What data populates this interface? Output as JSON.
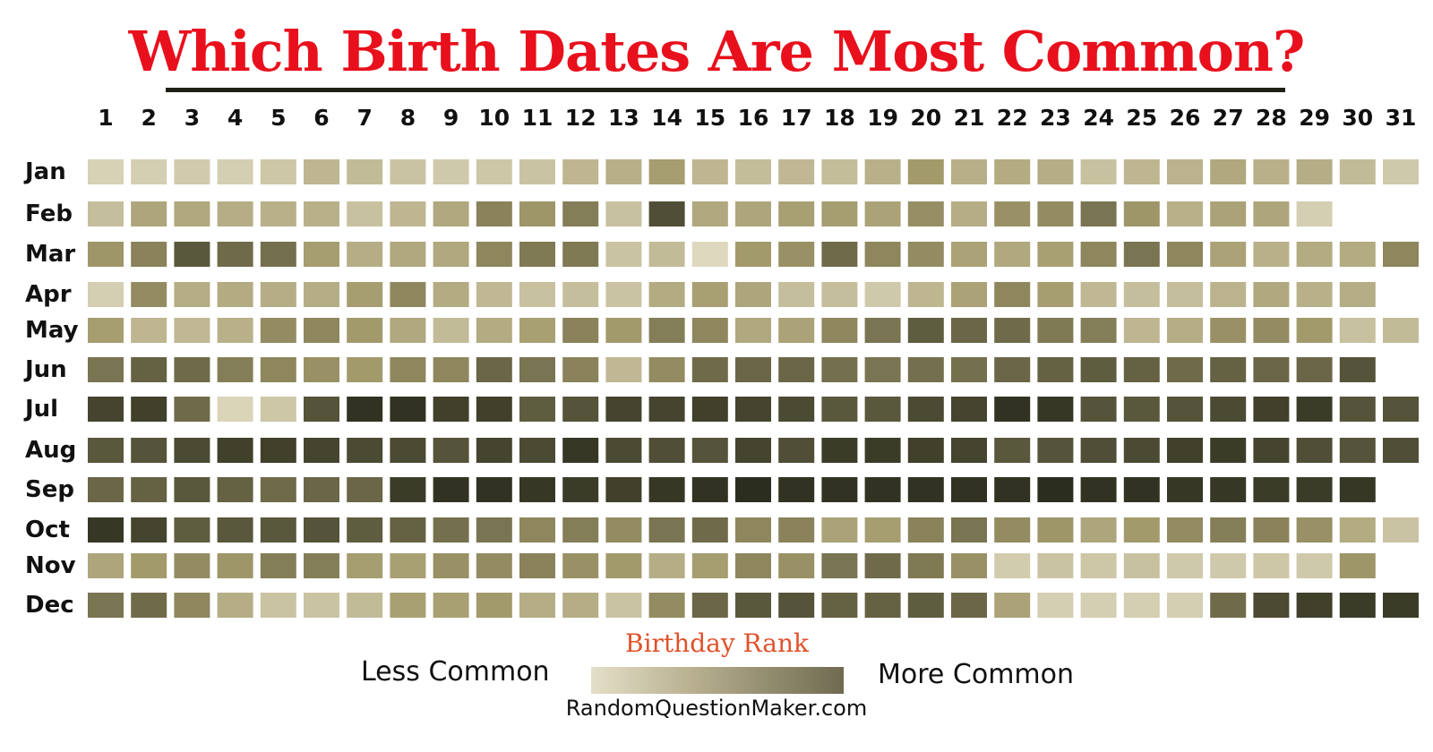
{
  "title": "Which Birth Dates Are Most Common?",
  "chart_data": {
    "type": "heatmap",
    "title": "Which Birth Dates Are Most Common?",
    "x_labels": [
      "1",
      "2",
      "3",
      "4",
      "5",
      "6",
      "7",
      "8",
      "9",
      "10",
      "11",
      "12",
      "13",
      "14",
      "15",
      "16",
      "17",
      "18",
      "19",
      "20",
      "21",
      "22",
      "23",
      "24",
      "25",
      "26",
      "27",
      "28",
      "29",
      "30",
      "31"
    ],
    "y_labels": [
      "Jan",
      "Feb",
      "Mar",
      "Apr",
      "May",
      "Jun",
      "Jul",
      "Aug",
      "Sep",
      "Oct",
      "Nov",
      "Dec"
    ],
    "value_meaning": "relative commonness, 0 = less common, 1 = more common",
    "values": [
      [
        0.1,
        0.12,
        0.15,
        0.12,
        0.18,
        0.3,
        0.26,
        0.2,
        0.16,
        0.18,
        0.2,
        0.3,
        0.35,
        0.48,
        0.3,
        0.25,
        0.28,
        0.25,
        0.34,
        0.5,
        0.35,
        0.38,
        0.36,
        0.22,
        0.3,
        0.32,
        0.4,
        0.34,
        0.36,
        0.26,
        0.16
      ],
      [
        0.24,
        0.42,
        0.4,
        0.36,
        0.34,
        0.34,
        0.22,
        0.3,
        0.4,
        0.6,
        0.52,
        0.62,
        0.22,
        0.82,
        0.4,
        0.42,
        0.46,
        0.48,
        0.44,
        0.55,
        0.36,
        0.54,
        0.56,
        0.66,
        0.52,
        0.34,
        0.44,
        0.42,
        0.12
      ],
      [
        0.52,
        0.6,
        0.78,
        0.7,
        0.68,
        0.48,
        0.36,
        0.4,
        0.4,
        0.58,
        0.64,
        0.64,
        0.2,
        0.26,
        0.05,
        0.5,
        0.54,
        0.7,
        0.58,
        0.56,
        0.44,
        0.4,
        0.46,
        0.58,
        0.66,
        0.58,
        0.44,
        0.34,
        0.38,
        0.38,
        0.58
      ],
      [
        0.12,
        0.56,
        0.36,
        0.38,
        0.36,
        0.36,
        0.48,
        0.58,
        0.38,
        0.28,
        0.22,
        0.24,
        0.2,
        0.38,
        0.46,
        0.42,
        0.24,
        0.24,
        0.16,
        0.3,
        0.44,
        0.58,
        0.48,
        0.28,
        0.24,
        0.24,
        0.32,
        0.4,
        0.34,
        0.36
      ],
      [
        0.48,
        0.3,
        0.28,
        0.34,
        0.56,
        0.58,
        0.5,
        0.4,
        0.26,
        0.38,
        0.46,
        0.6,
        0.5,
        0.62,
        0.58,
        0.4,
        0.44,
        0.58,
        0.66,
        0.76,
        0.72,
        0.7,
        0.64,
        0.62,
        0.3,
        0.36,
        0.54,
        0.56,
        0.5,
        0.22,
        0.26
      ],
      [
        0.66,
        0.74,
        0.7,
        0.62,
        0.58,
        0.54,
        0.5,
        0.58,
        0.58,
        0.72,
        0.66,
        0.6,
        0.28,
        0.56,
        0.7,
        0.72,
        0.72,
        0.68,
        0.66,
        0.68,
        0.68,
        0.72,
        0.74,
        0.76,
        0.74,
        0.7,
        0.74,
        0.72,
        0.72,
        0.8
      ],
      [
        0.86,
        0.88,
        0.7,
        0.08,
        0.18,
        0.8,
        0.94,
        0.94,
        0.88,
        0.88,
        0.76,
        0.8,
        0.86,
        0.86,
        0.88,
        0.86,
        0.84,
        0.78,
        0.78,
        0.84,
        0.86,
        0.94,
        0.92,
        0.8,
        0.78,
        0.8,
        0.84,
        0.88,
        0.9,
        0.8,
        0.8
      ],
      [
        0.78,
        0.8,
        0.84,
        0.88,
        0.88,
        0.86,
        0.84,
        0.84,
        0.8,
        0.86,
        0.84,
        0.92,
        0.84,
        0.82,
        0.8,
        0.86,
        0.82,
        0.9,
        0.9,
        0.88,
        0.86,
        0.78,
        0.8,
        0.82,
        0.84,
        0.88,
        0.9,
        0.86,
        0.82,
        0.8,
        0.82
      ],
      [
        0.72,
        0.74,
        0.78,
        0.74,
        0.7,
        0.72,
        0.72,
        0.9,
        0.94,
        0.94,
        0.92,
        0.9,
        0.88,
        0.92,
        0.94,
        0.96,
        0.94,
        0.94,
        0.94,
        0.94,
        0.94,
        0.94,
        0.96,
        0.94,
        0.94,
        0.92,
        0.92,
        0.9,
        0.9,
        0.92
      ],
      [
        0.92,
        0.86,
        0.76,
        0.78,
        0.78,
        0.8,
        0.76,
        0.74,
        0.68,
        0.66,
        0.58,
        0.62,
        0.56,
        0.66,
        0.7,
        0.58,
        0.6,
        0.44,
        0.48,
        0.6,
        0.66,
        0.56,
        0.52,
        0.42,
        0.5,
        0.56,
        0.62,
        0.6,
        0.54,
        0.38,
        0.2
      ],
      [
        0.42,
        0.5,
        0.56,
        0.52,
        0.62,
        0.62,
        0.48,
        0.46,
        0.54,
        0.56,
        0.6,
        0.54,
        0.5,
        0.36,
        0.48,
        0.58,
        0.54,
        0.66,
        0.7,
        0.64,
        0.54,
        0.14,
        0.2,
        0.18,
        0.22,
        0.16,
        0.16,
        0.18,
        0.16,
        0.52
      ],
      [
        0.66,
        0.7,
        0.58,
        0.36,
        0.2,
        0.2,
        0.26,
        0.46,
        0.46,
        0.5,
        0.36,
        0.36,
        0.2,
        0.56,
        0.72,
        0.78,
        0.8,
        0.74,
        0.74,
        0.76,
        0.72,
        0.44,
        0.12,
        0.12,
        0.12,
        0.12,
        0.7,
        0.84,
        0.88,
        0.9,
        0.9
      ]
    ],
    "color_scale": {
      "low": "#e4dfc8",
      "mid": "#a39a6c",
      "high": "#212417"
    },
    "legend": {
      "title": "Birthday Rank",
      "low_label": "Less Common",
      "high_label": "More Common",
      "placement": "bottom-center"
    },
    "grid": false
  },
  "source": "RandomQuestionMaker.com"
}
